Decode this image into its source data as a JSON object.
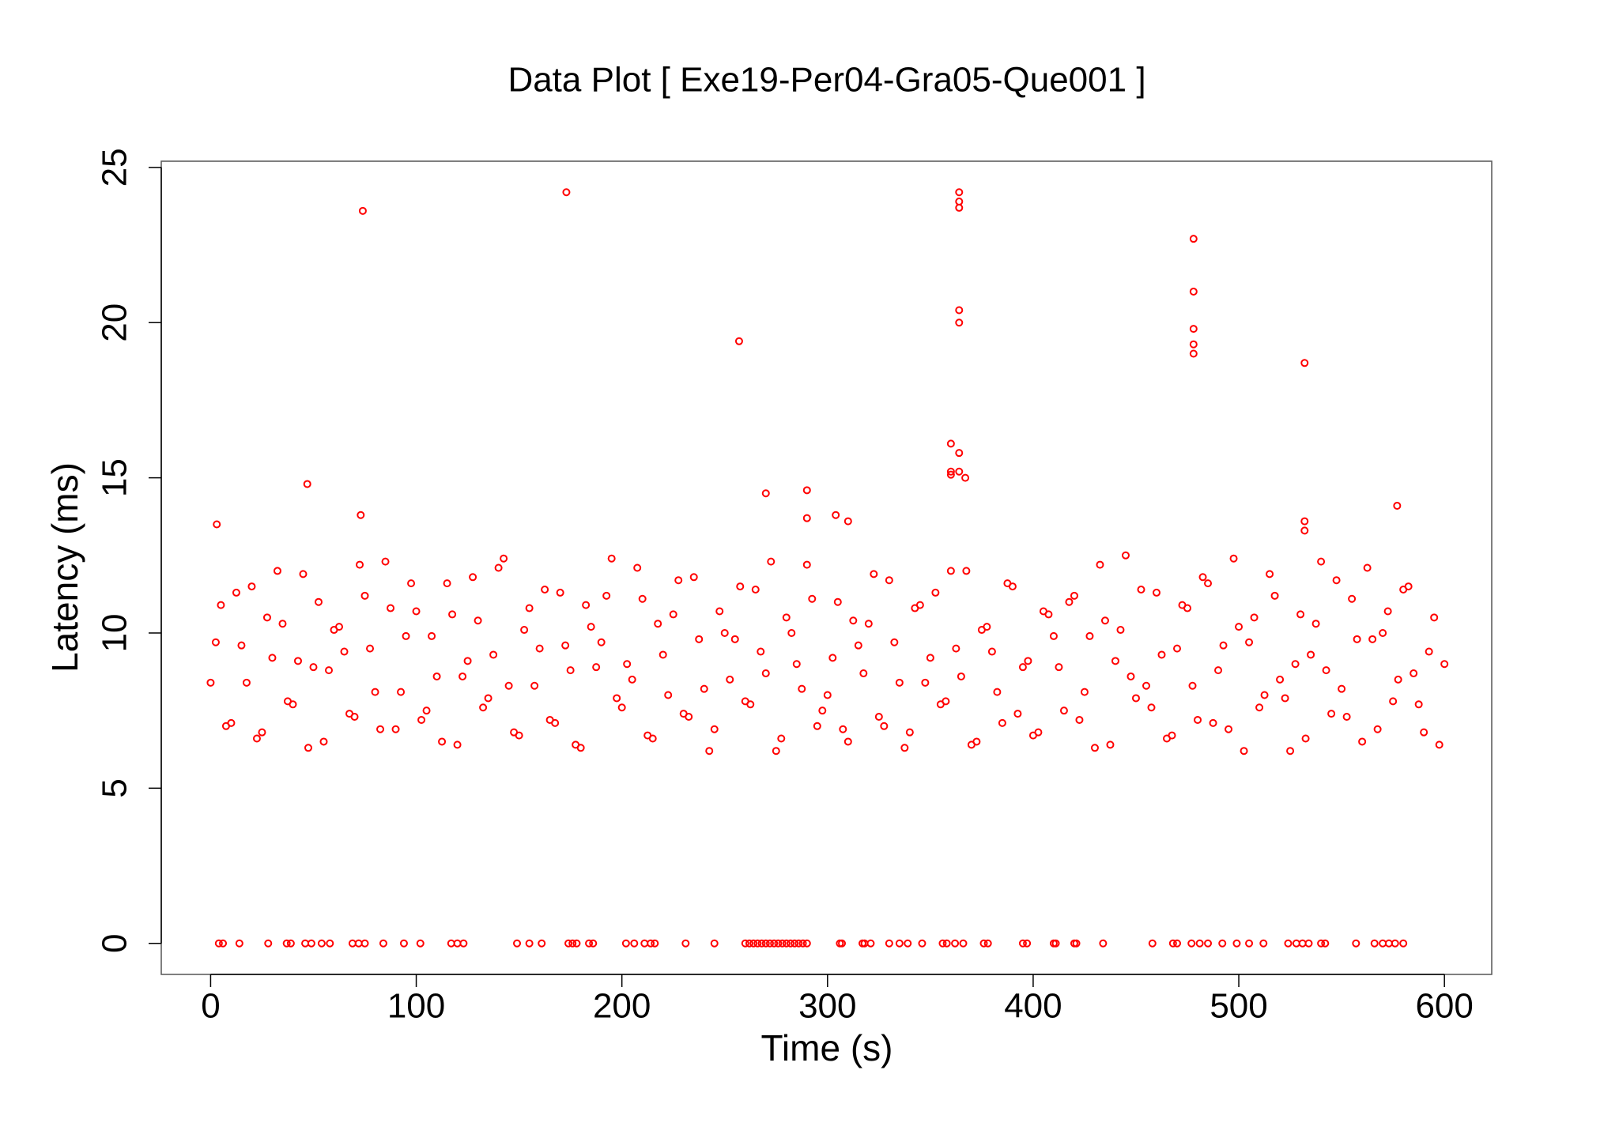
{
  "chart_data": {
    "type": "scatter",
    "title": "Data Plot [ Exe19-Per04-Gra05-Que001 ]",
    "x_label": "Time (s)",
    "y_label": "Latency (ms)",
    "color": "#ff0000",
    "xlim": [
      -24,
      623
    ],
    "ylim": [
      -1,
      25.2
    ],
    "xticks": [
      0,
      100,
      200,
      300,
      400,
      500,
      600
    ],
    "yticks": [
      0,
      5,
      10,
      15,
      20,
      25
    ],
    "x": [
      3,
      47,
      74,
      73,
      173,
      257,
      270,
      290,
      290,
      304,
      310,
      364,
      364,
      364,
      364,
      364,
      360,
      364,
      360,
      360,
      364,
      367,
      478,
      478,
      478,
      478,
      478,
      532,
      532,
      532,
      577,
      4,
      6,
      14,
      28,
      37,
      39,
      46,
      49,
      54,
      58,
      69,
      72,
      75,
      84,
      94,
      102,
      117,
      120,
      123,
      149,
      155,
      161,
      174,
      176,
      178,
      184,
      186,
      202,
      206,
      211,
      214,
      216,
      231,
      245,
      260,
      262,
      264,
      266,
      268,
      270,
      272,
      274,
      276,
      278,
      280,
      282,
      284,
      286,
      288,
      290,
      306,
      307,
      317,
      318,
      321,
      330,
      335,
      339,
      346,
      356,
      358,
      362,
      366,
      376,
      378,
      395,
      397,
      410,
      411,
      420,
      421,
      434,
      458,
      468,
      470,
      477,
      481,
      485,
      492,
      499,
      505,
      512,
      524,
      528,
      531,
      534,
      540,
      542,
      557,
      566,
      570,
      573,
      576,
      580,
      0,
      5,
      10,
      15,
      20,
      25,
      30,
      35,
      40,
      45,
      50,
      55,
      60,
      65,
      70,
      75,
      80,
      85,
      90,
      95,
      100,
      105,
      110,
      115,
      120,
      125,
      130,
      135,
      140,
      145,
      150,
      155,
      160,
      165,
      170,
      175,
      180,
      185,
      190,
      195,
      200,
      205,
      210,
      215,
      220,
      225,
      230,
      235,
      240,
      245,
      250,
      255,
      260,
      265,
      270,
      275,
      280,
      285,
      290,
      295,
      300,
      305,
      310,
      315,
      320,
      325,
      330,
      335,
      340,
      345,
      350,
      355,
      360,
      365,
      370,
      375,
      380,
      385,
      390,
      395,
      400,
      405,
      410,
      415,
      420,
      425,
      430,
      435,
      440,
      445,
      450,
      455,
      460,
      465,
      470,
      475,
      480,
      485,
      490,
      495,
      500,
      505,
      510,
      515,
      520,
      525,
      530,
      535,
      540,
      545,
      550,
      555,
      560,
      565,
      570,
      575,
      580,
      585,
      590,
      595,
      600,
      2.5,
      7.5,
      12.5,
      17.5,
      22.5,
      27.5,
      32.5,
      37.5,
      42.5,
      47.5,
      52.5,
      57.5,
      62.5,
      67.5,
      72.5,
      77.5,
      82.5,
      87.5,
      92.5,
      97.5,
      102.5,
      107.5,
      112.5,
      117.5,
      122.5,
      127.5,
      132.5,
      137.5,
      142.5,
      147.5,
      152.5,
      157.5,
      162.5,
      167.5,
      172.5,
      177.5,
      182.5,
      187.5,
      192.5,
      197.5,
      202.5,
      207.5,
      212.5,
      217.5,
      222.5,
      227.5,
      232.5,
      237.5,
      242.5,
      247.5,
      252.5,
      257.5,
      262.5,
      267.5,
      272.5,
      277.5,
      282.5,
      287.5,
      292.5,
      297.5,
      302.5,
      307.5,
      312.5,
      317.5,
      322.5,
      327.5,
      332.5,
      337.5,
      342.5,
      347.5,
      352.5,
      357.5,
      362.5,
      367.5,
      372.5,
      377.5,
      382.5,
      387.5,
      392.5,
      397.5,
      402.5,
      407.5,
      412.5,
      417.5,
      422.5,
      427.5,
      432.5,
      437.5,
      442.5,
      447.5,
      452.5,
      457.5,
      462.5,
      467.5,
      472.5,
      477.5,
      482.5,
      487.5,
      492.5,
      497.5,
      502.5,
      507.5,
      512.5,
      517.5,
      522.5,
      527.5,
      532.5,
      537.5,
      542.5,
      547.5,
      552.5,
      557.5,
      562.5,
      567.5,
      572.5,
      577.5,
      582.5,
      587.5,
      592.5,
      597.5
    ],
    "values": [
      13.5,
      14.8,
      23.6,
      13.8,
      24.2,
      19.4,
      14.5,
      14.6,
      13.7,
      13.8,
      13.6,
      24.2,
      23.9,
      23.7,
      20.4,
      20.0,
      16.1,
      15.8,
      15.2,
      15.1,
      15.2,
      15.0,
      22.7,
      21.0,
      19.8,
      19.3,
      19.0,
      18.7,
      13.6,
      13.3,
      14.1,
      0,
      0,
      0,
      0,
      0,
      0,
      0,
      0,
      0,
      0,
      0,
      0,
      0,
      0,
      0,
      0,
      0,
      0,
      0,
      0,
      0,
      0,
      0,
      0,
      0,
      0,
      0,
      0,
      0,
      0,
      0,
      0,
      0,
      0,
      0,
      0,
      0,
      0,
      0,
      0,
      0,
      0,
      0,
      0,
      0,
      0,
      0,
      0,
      0,
      0,
      0,
      0,
      0,
      0,
      0,
      0,
      0,
      0,
      0,
      0,
      0,
      0,
      0,
      0,
      0,
      0,
      0,
      0,
      0,
      0,
      0,
      0,
      0,
      0,
      0,
      0,
      0,
      0,
      0,
      0,
      0,
      0,
      0,
      0,
      0,
      0,
      0,
      0,
      0,
      0,
      0,
      0,
      0,
      0,
      8.4,
      10.9,
      7.1,
      9.6,
      11.5,
      6.8,
      9.2,
      10.3,
      7.7,
      11.9,
      8.9,
      6.5,
      10.1,
      9.4,
      7.3,
      11.2,
      8.1,
      12.3,
      6.9,
      9.9,
      10.7,
      7.5,
      8.6,
      11.6,
      6.4,
      9.1,
      10.4,
      7.9,
      12.1,
      8.3,
      6.7,
      10.8,
      9.5,
      7.2,
      11.3,
      8.8,
      6.3,
      10.2,
      9.7,
      12.4,
      7.6,
      8.5,
      11.1,
      6.6,
      9.3,
      10.6,
      7.4,
      11.8,
      8.2,
      6.9,
      10.0,
      9.8,
      7.8,
      11.4,
      8.7,
      6.2,
      10.5,
      9.0,
      12.2,
      7.0,
      8.0,
      11.0,
      6.5,
      9.6,
      10.3,
      7.3,
      11.7,
      8.4,
      6.8,
      10.9,
      9.2,
      7.7,
      12.0,
      8.6,
      6.4,
      10.1,
      9.4,
      7.1,
      11.5,
      8.9,
      6.7,
      10.7,
      9.9,
      7.5,
      11.2,
      8.1,
      6.3,
      10.4,
      9.1,
      12.5,
      7.9,
      8.3,
      11.3,
      6.6,
      9.5,
      10.8,
      7.2,
      11.6,
      8.8,
      6.9,
      10.2,
      9.7,
      7.6,
      11.9,
      8.5,
      6.2,
      10.6,
      9.3,
      12.3,
      7.4,
      8.2,
      11.1,
      6.5,
      9.8,
      10.0,
      7.8,
      11.4,
      8.7,
      6.8,
      10.5,
      9.0,
      9.7,
      7.0,
      11.3,
      8.4,
      6.6,
      10.5,
      12.0,
      7.8,
      9.1,
      6.3,
      11.0,
      8.8,
      10.2,
      7.4,
      12.2,
      9.5,
      6.9,
      10.8,
      8.1,
      11.6,
      7.2,
      9.9,
      6.5,
      10.6,
      8.6,
      11.8,
      7.6,
      9.3,
      12.4,
      6.8,
      10.1,
      8.3,
      11.4,
      7.1,
      9.6,
      6.4,
      10.9,
      8.9,
      11.2,
      7.9,
      9.0,
      12.1,
      6.7,
      10.3,
      8.0,
      11.7,
      7.3,
      9.8,
      6.2,
      10.7,
      8.5,
      11.5,
      7.7,
      9.4,
      12.3,
      6.6,
      10.0,
      8.2,
      11.1,
      7.5,
      9.2,
      6.9,
      10.4,
      8.7,
      11.9,
      7.0,
      9.7,
      6.3,
      10.8,
      8.4,
      11.3,
      7.8,
      9.5,
      12.0,
      6.5,
      10.2,
      8.1,
      11.6,
      7.4,
      9.1,
      6.8,
      10.6,
      8.9,
      11.0,
      7.2,
      9.9,
      12.2,
      6.4,
      10.1,
      8.6,
      11.4,
      7.6,
      9.3,
      6.7,
      10.9,
      8.3,
      11.8,
      7.1,
      9.6,
      12.4,
      6.2,
      10.5,
      8.0,
      11.2,
      7.9,
      9.0,
      6.6,
      10.3,
      8.8,
      11.7,
      7.3,
      9.8,
      12.1,
      6.9,
      10.7,
      8.5,
      11.5,
      7.7,
      9.4,
      6.4
    ]
  }
}
